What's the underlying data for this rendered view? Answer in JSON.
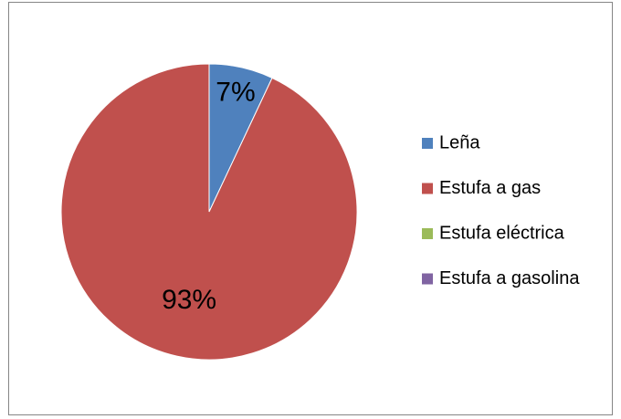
{
  "chart_data": {
    "type": "pie",
    "categories": [
      "Leña",
      "Estufa a gas",
      "Estufa eléctrica",
      "Estufa a gasolina"
    ],
    "values": [
      7,
      93,
      0,
      0
    ],
    "value_labels": [
      "7%",
      "93%",
      null,
      null
    ],
    "colors": [
      "#4f81bd",
      "#c0504d",
      "#9bbb59",
      "#8064a2"
    ],
    "legend": "right"
  }
}
